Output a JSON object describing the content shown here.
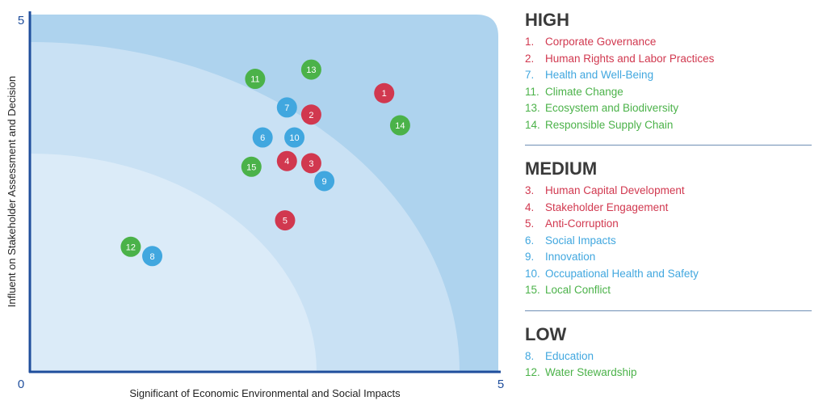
{
  "colors": {
    "red": "#d1384f",
    "blue": "#41a7df",
    "green": "#4bb249",
    "axis": "#1f4e9c",
    "zone_high": "#aed3ee",
    "zone_medium": "#c9e1f4",
    "zone_low": "#dbebf8"
  },
  "chart_data": {
    "type": "scatter",
    "title": "",
    "xlabel": "Significant of Economic Environmental and Social Impacts",
    "ylabel": "Influent on Stakeholder Assessment and Decision",
    "xlim": [
      0,
      5
    ],
    "ylim": [
      0,
      5
    ],
    "x_ticks": [
      "0",
      "5"
    ],
    "y_ticks": [
      "5"
    ],
    "points": [
      {
        "label": "1",
        "x": 3.78,
        "y": 3.9,
        "color": "red"
      },
      {
        "label": "2",
        "x": 3.0,
        "y": 3.6,
        "color": "red"
      },
      {
        "label": "3",
        "x": 3.0,
        "y": 2.92,
        "color": "red"
      },
      {
        "label": "4",
        "x": 2.74,
        "y": 2.95,
        "color": "red"
      },
      {
        "label": "5",
        "x": 2.72,
        "y": 2.12,
        "color": "red"
      },
      {
        "label": "6",
        "x": 2.48,
        "y": 3.28,
        "color": "blue"
      },
      {
        "label": "7",
        "x": 2.74,
        "y": 3.7,
        "color": "blue"
      },
      {
        "label": "8",
        "x": 1.3,
        "y": 1.62,
        "color": "blue"
      },
      {
        "label": "9",
        "x": 3.14,
        "y": 2.67,
        "color": "blue"
      },
      {
        "label": "10",
        "x": 2.82,
        "y": 3.28,
        "color": "blue"
      },
      {
        "label": "11",
        "x": 2.4,
        "y": 4.1,
        "color": "green"
      },
      {
        "label": "12",
        "x": 1.07,
        "y": 1.75,
        "color": "green"
      },
      {
        "label": "13",
        "x": 3.0,
        "y": 4.23,
        "color": "green"
      },
      {
        "label": "14",
        "x": 3.95,
        "y": 3.45,
        "color": "green"
      },
      {
        "label": "15",
        "x": 2.36,
        "y": 2.87,
        "color": "green"
      }
    ]
  },
  "legend": [
    {
      "title": "HIGH",
      "items": [
        {
          "num": "1.",
          "text": "Corporate Governance",
          "color": "red"
        },
        {
          "num": "2.",
          "text": "Human Rights and Labor Practices",
          "color": "red"
        },
        {
          "num": "7.",
          "text": "Health and Well-Being",
          "color": "blue"
        },
        {
          "num": "11.",
          "text": "Climate Change",
          "color": "green"
        },
        {
          "num": "13.",
          "text": "Ecosystem and Biodiversity",
          "color": "green"
        },
        {
          "num": "14.",
          "text": "Responsible Supply Chain",
          "color": "green"
        }
      ]
    },
    {
      "title": "MEDIUM",
      "items": [
        {
          "num": "3.",
          "text": "Human Capital Development",
          "color": "red"
        },
        {
          "num": "4.",
          "text": "Stakeholder Engagement",
          "color": "red"
        },
        {
          "num": "5.",
          "text": "Anti-Corruption",
          "color": "red"
        },
        {
          "num": "6.",
          "text": "Social Impacts",
          "color": "blue"
        },
        {
          "num": "9.",
          "text": "Innovation",
          "color": "blue"
        },
        {
          "num": "10.",
          "text": "Occupational Health and Safety",
          "color": "blue"
        },
        {
          "num": "15.",
          "text": "Local Conflict",
          "color": "green"
        }
      ]
    },
    {
      "title": "LOW",
      "items": [
        {
          "num": "8.",
          "text": "Education",
          "color": "blue"
        },
        {
          "num": "12.",
          "text": "Water Stewardship",
          "color": "green"
        }
      ]
    }
  ]
}
